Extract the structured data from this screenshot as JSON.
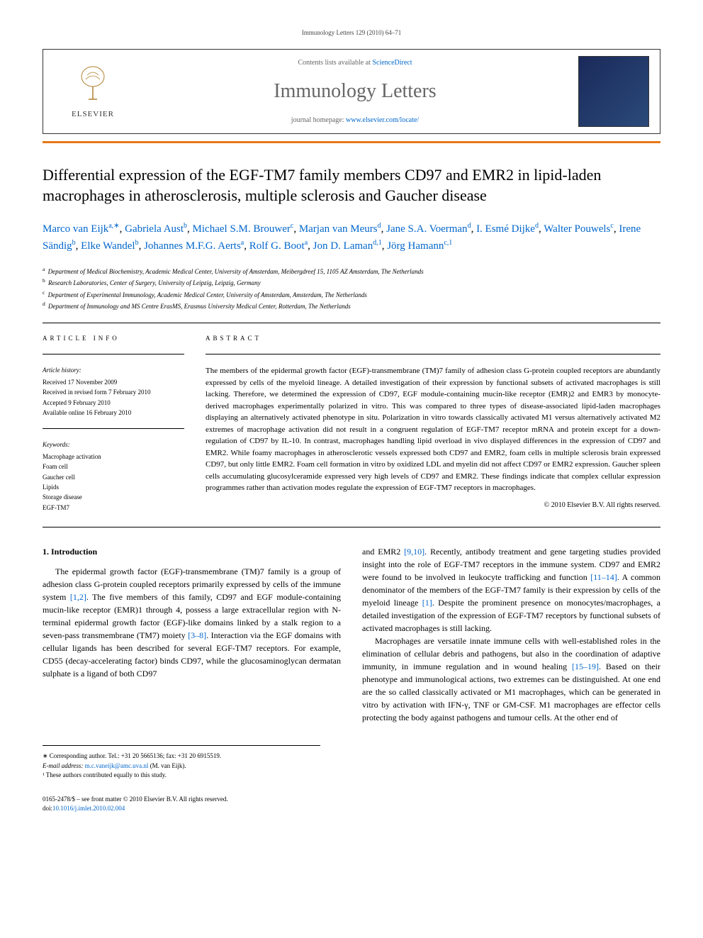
{
  "header": {
    "citation": "Immunology Letters 129 (2010) 64–71"
  },
  "banner": {
    "publisher": "ELSEVIER",
    "contents_prefix": "Contents lists available at ",
    "contents_link": "ScienceDirect",
    "journal": "Immunology Letters",
    "homepage_prefix": "journal homepage: ",
    "homepage_link": "www.elsevier.com/locate/"
  },
  "title": "Differential expression of the EGF-TM7 family members CD97 and EMR2 in lipid-laden macrophages in atherosclerosis, multiple sclerosis and Gaucher disease",
  "authors": [
    {
      "name": "Marco van Eijk",
      "sup": "a,∗"
    },
    {
      "name": "Gabriela Aust",
      "sup": "b"
    },
    {
      "name": "Michael S.M. Brouwer",
      "sup": "c"
    },
    {
      "name": "Marjan van Meurs",
      "sup": "d"
    },
    {
      "name": "Jane S.A. Voerman",
      "sup": "d"
    },
    {
      "name": "I. Esmé Dijke",
      "sup": "d"
    },
    {
      "name": "Walter Pouwels",
      "sup": "c"
    },
    {
      "name": "Irene Sändig",
      "sup": "b"
    },
    {
      "name": "Elke Wandel",
      "sup": "b"
    },
    {
      "name": "Johannes M.F.G. Aerts",
      "sup": "a"
    },
    {
      "name": "Rolf G. Boot",
      "sup": "a"
    },
    {
      "name": "Jon D. Laman",
      "sup": "d,1"
    },
    {
      "name": "Jörg Hamann",
      "sup": "c,1"
    }
  ],
  "affiliations": [
    {
      "sup": "a",
      "text": "Department of Medical Biochemistry, Academic Medical Center, University of Amsterdam, Meibergdreef 15, 1105 AZ Amsterdam, The Netherlands"
    },
    {
      "sup": "b",
      "text": "Research Laboratories, Center of Surgery, University of Leipzig, Leipzig, Germany"
    },
    {
      "sup": "c",
      "text": "Department of Experimental Immunology, Academic Medical Center, University of Amsterdam, Amsterdam, The Netherlands"
    },
    {
      "sup": "d",
      "text": "Department of Immunology and MS Centre ErasMS, Erasmus University Medical Center, Rotterdam, The Netherlands"
    }
  ],
  "article_info": {
    "heading": "ARTICLE INFO",
    "history_label": "Article history:",
    "history": [
      "Received 17 November 2009",
      "Received in revised form 7 February 2010",
      "Accepted 9 February 2010",
      "Available online 16 February 2010"
    ],
    "keywords_label": "Keywords:",
    "keywords": [
      "Macrophage activation",
      "Foam cell",
      "Gaucher cell",
      "Lipids",
      "Storage disease",
      "EGF-TM7"
    ]
  },
  "abstract": {
    "heading": "ABSTRACT",
    "text": "The members of the epidermal growth factor (EGF)-transmembrane (TM)7 family of adhesion class G-protein coupled receptors are abundantly expressed by cells of the myeloid lineage. A detailed investigation of their expression by functional subsets of activated macrophages is still lacking. Therefore, we determined the expression of CD97, EGF module-containing mucin-like receptor (EMR)2 and EMR3 by monocyte-derived macrophages experimentally polarized in vitro. This was compared to three types of disease-associated lipid-laden macrophages displaying an alternatively activated phenotype in situ. Polarization in vitro towards classically activated M1 versus alternatively activated M2 extremes of macrophage activation did not result in a congruent regulation of EGF-TM7 receptor mRNA and protein except for a down-regulation of CD97 by IL-10. In contrast, macrophages handling lipid overload in vivo displayed differences in the expression of CD97 and EMR2. While foamy macrophages in atherosclerotic vessels expressed both CD97 and EMR2, foam cells in multiple sclerosis brain expressed CD97, but only little EMR2. Foam cell formation in vitro by oxidized LDL and myelin did not affect CD97 or EMR2 expression. Gaucher spleen cells accumulating glucosylceramide expressed very high levels of CD97 and EMR2. These findings indicate that complex cellular expression programmes rather than activation modes regulate the expression of EGF-TM7 receptors in macrophages.",
    "copyright": "© 2010 Elsevier B.V. All rights reserved."
  },
  "body": {
    "section_title": "1. Introduction",
    "col1_text": "The epidermal growth factor (EGF)-transmembrane (TM)7 family is a group of adhesion class G-protein coupled receptors primarily expressed by cells of the immune system [1,2]. The five members of this family, CD97 and EGF module-containing mucin-like receptor (EMR)1 through 4, possess a large extracellular region with N-terminal epidermal growth factor (EGF)-like domains linked by a stalk region to a seven-pass transmembrane (TM7) moiety [3–8]. Interaction via the EGF domains with cellular ligands has been described for several EGF-TM7 receptors. For example, CD55 (decay-accelerating factor) binds CD97, while the glucosaminoglycan dermatan sulphate is a ligand of both CD97",
    "col1_refs": {
      "r1": "[1,2]",
      "r2": "[3–8]"
    },
    "col2_text_a": "and EMR2 [9,10]. Recently, antibody treatment and gene targeting studies provided insight into the role of EGF-TM7 receptors in the immune system. CD97 and EMR2 were found to be involved in leukocyte trafficking and function [11–14]. A common denominator of the members of the EGF-TM7 family is their expression by cells of the myeloid lineage [1]. Despite the prominent presence on monocytes/macrophages, a detailed investigation of the expression of EGF-TM7 receptors by functional subsets of activated macrophages is still lacking.",
    "col2_text_b": "Macrophages are versatile innate immune cells with well-established roles in the elimination of cellular debris and pathogens, but also in the coordination of adaptive immunity, in immune regulation and in wound healing [15–19]. Based on their phenotype and immunological actions, two extremes can be distinguished. At one end are the so called classically activated or M1 macrophages, which can be generated in vitro by activation with IFN-γ, TNF or GM-CSF. M1 macrophages are effector cells protecting the body against pathogens and tumour cells. At the other end of",
    "col2_refs": {
      "r1": "[9,10]",
      "r2": "[11–14]",
      "r3": "[1]",
      "r4": "[15–19]"
    }
  },
  "footnotes": {
    "corresponding": "∗ Corresponding author. Tel.: +31 20 5665136; fax: +31 20 6915519.",
    "email_label": "E-mail address: ",
    "email": "m.c.vaneijk@amc.uva.nl",
    "email_suffix": " (M. van Eijk).",
    "equal": "¹ These authors contributed equally to this study."
  },
  "footer": {
    "issn": "0165-2478/$ – see front matter © 2010 Elsevier B.V. All rights reserved.",
    "doi_label": "doi:",
    "doi": "10.1016/j.imlet.2010.02.004"
  },
  "colors": {
    "link": "#0066cc",
    "orange": "#e67817",
    "gray_text": "#666666"
  }
}
